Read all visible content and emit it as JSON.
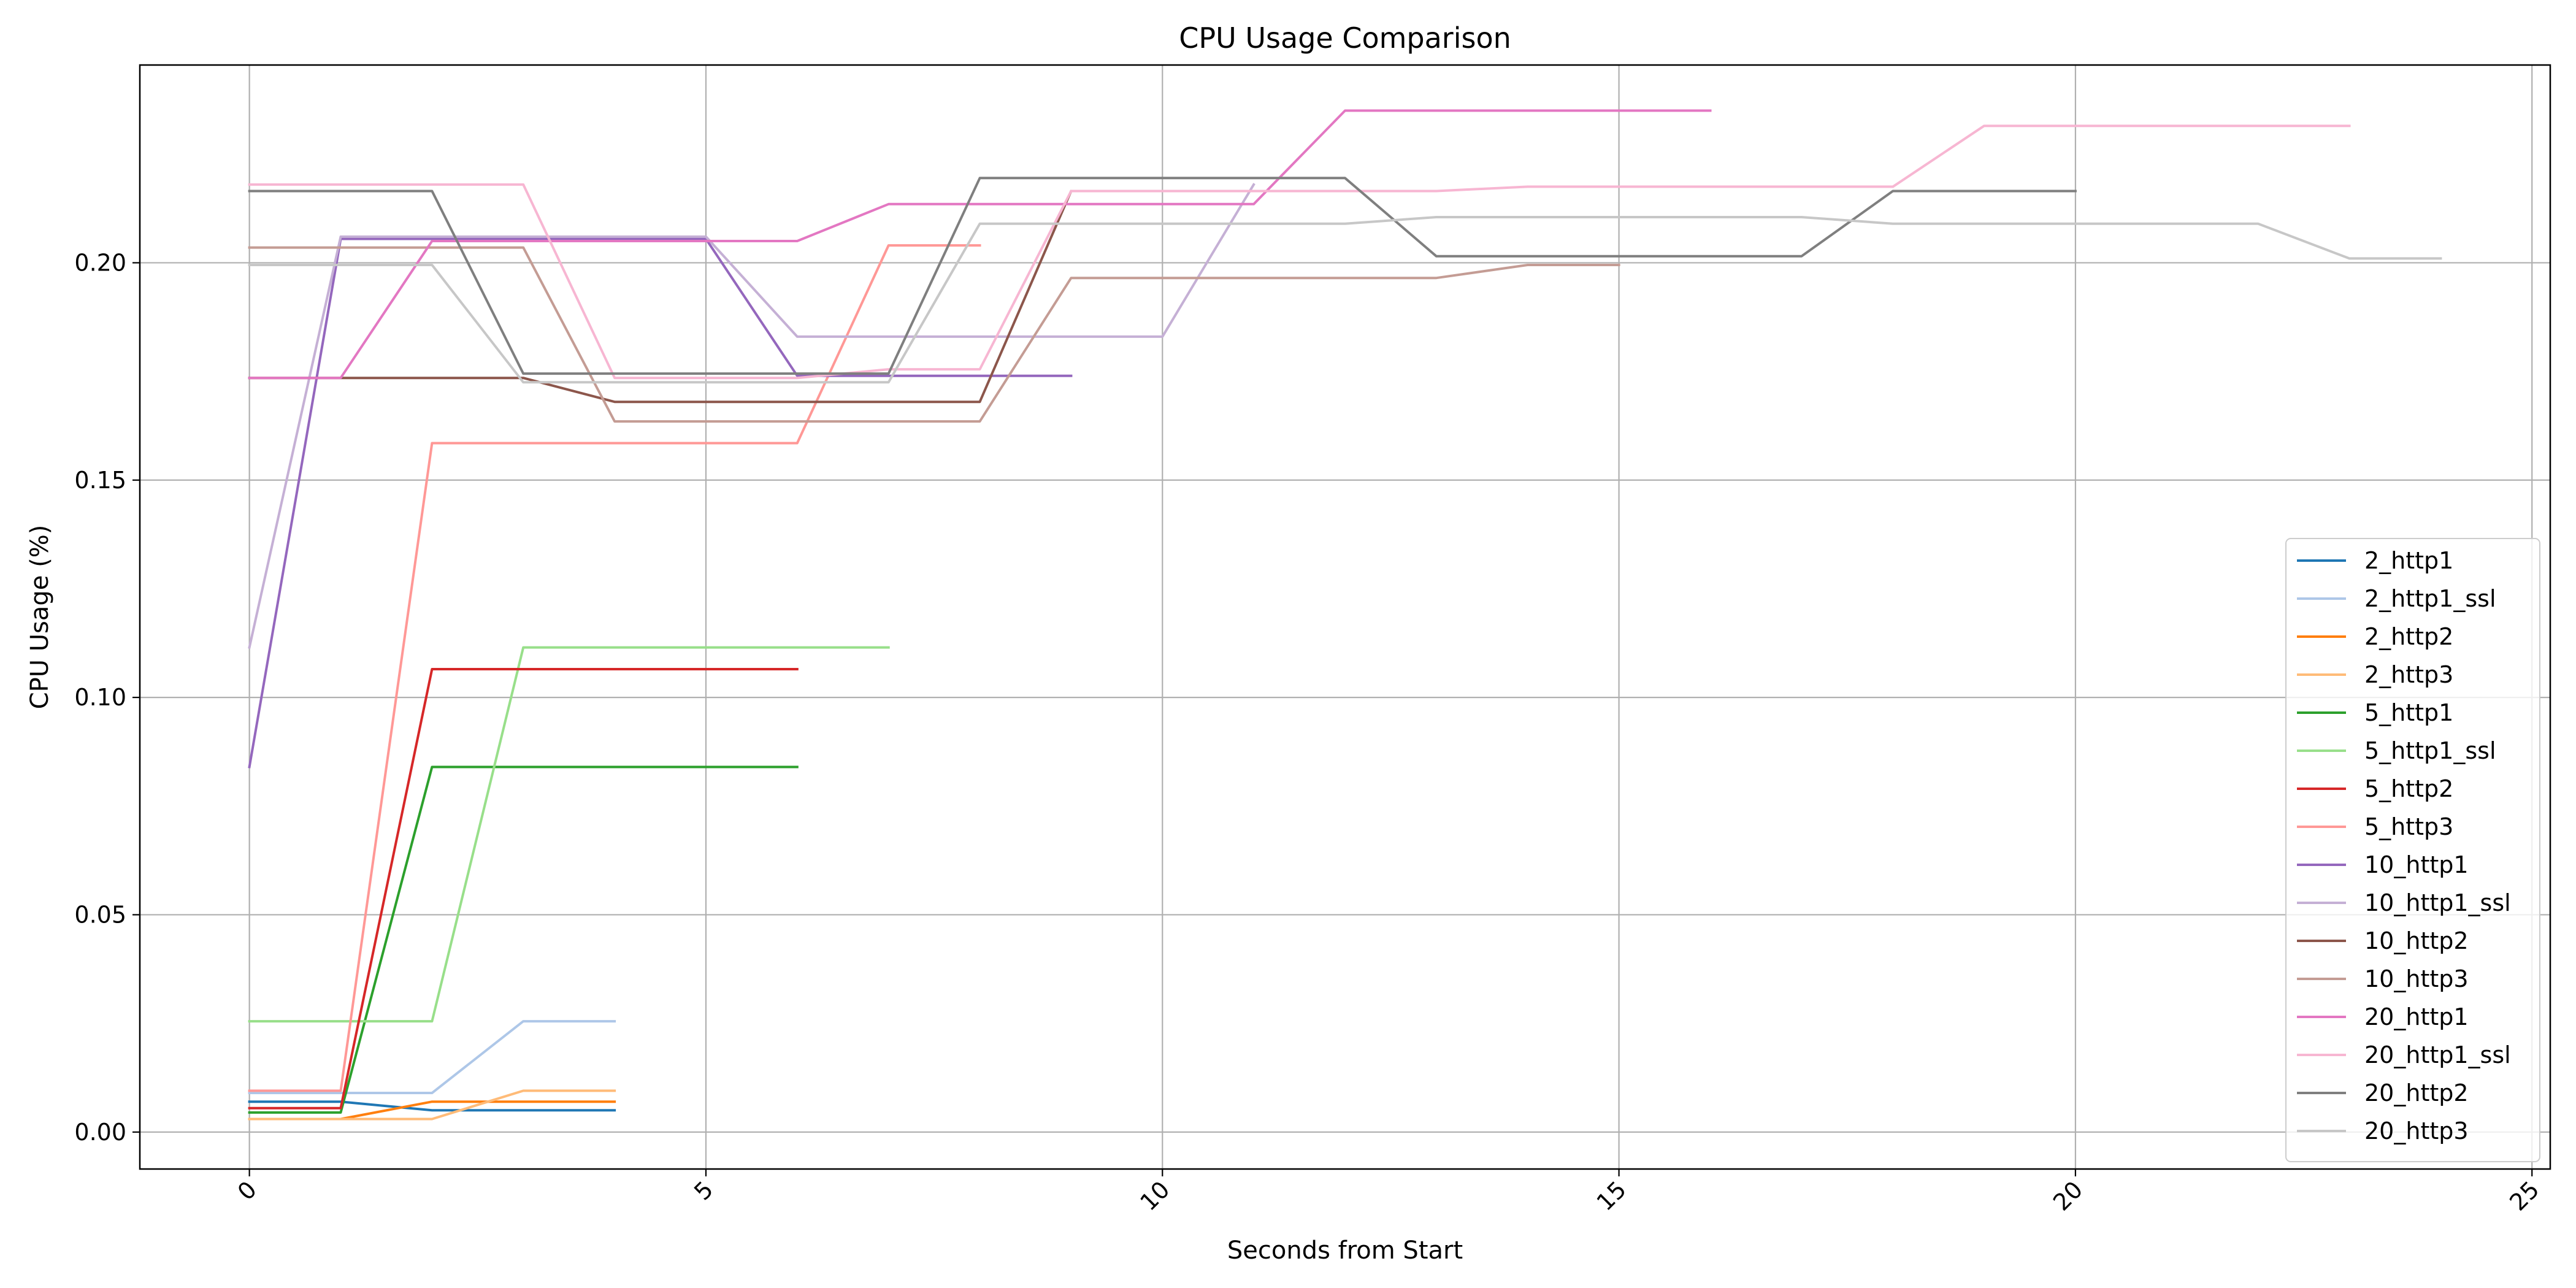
{
  "chart_data": {
    "type": "line",
    "title": "CPU Usage Comparison",
    "xlabel": "Seconds from Start",
    "ylabel": "CPU Usage (%)",
    "xlim": [
      -1.2,
      25.2
    ],
    "ylim": [
      -0.0085,
      0.2455
    ],
    "xticks": [
      0,
      5,
      10,
      15,
      20,
      25
    ],
    "xtick_labels": [
      "0",
      "5",
      "10",
      "15",
      "20",
      "25"
    ],
    "yticks": [
      0.0,
      0.05,
      0.1,
      0.15,
      0.2
    ],
    "ytick_labels": [
      "0.00",
      "0.05",
      "0.10",
      "0.15",
      "0.20"
    ],
    "grid": true,
    "legend_position": "lower-right",
    "series": [
      {
        "name": "2_http1",
        "color": "#1f77b4",
        "x": [
          0,
          1,
          2,
          3,
          4
        ],
        "y": [
          0.007,
          0.007,
          0.005,
          0.005,
          0.005
        ]
      },
      {
        "name": "2_http1_ssl",
        "color": "#aec7e8",
        "x": [
          0,
          1,
          2,
          3,
          4
        ],
        "y": [
          0.009,
          0.009,
          0.009,
          0.0255,
          0.0255
        ]
      },
      {
        "name": "2_http2",
        "color": "#ff7f0e",
        "x": [
          0,
          1,
          2,
          3,
          4
        ],
        "y": [
          0.003,
          0.003,
          0.007,
          0.007,
          0.007
        ]
      },
      {
        "name": "2_http3",
        "color": "#ffbb78",
        "x": [
          0,
          1,
          2,
          3,
          4
        ],
        "y": [
          0.003,
          0.003,
          0.003,
          0.0095,
          0.0095
        ]
      },
      {
        "name": "5_http1",
        "color": "#2ca02c",
        "x": [
          0,
          1,
          2,
          3,
          4,
          5,
          6
        ],
        "y": [
          0.0045,
          0.0045,
          0.084,
          0.084,
          0.084,
          0.084,
          0.084
        ]
      },
      {
        "name": "5_http1_ssl",
        "color": "#98df8a",
        "x": [
          0,
          1,
          2,
          3,
          4,
          5,
          6,
          7
        ],
        "y": [
          0.0255,
          0.0255,
          0.0255,
          0.1115,
          0.1115,
          0.1115,
          0.1115,
          0.1115
        ]
      },
      {
        "name": "5_http2",
        "color": "#d62728",
        "x": [
          0,
          1,
          2,
          3,
          4,
          5,
          6
        ],
        "y": [
          0.0055,
          0.0055,
          0.1065,
          0.1065,
          0.1065,
          0.1065,
          0.1065
        ]
      },
      {
        "name": "5_http3",
        "color": "#ff9896",
        "x": [
          0,
          1,
          2,
          3,
          4,
          5,
          6,
          7,
          8
        ],
        "y": [
          0.0095,
          0.0095,
          0.1585,
          0.1585,
          0.1585,
          0.1585,
          0.1585,
          0.204,
          0.204
        ]
      },
      {
        "name": "10_http1",
        "color": "#9467bd",
        "x": [
          0,
          1,
          2,
          3,
          4,
          5,
          6,
          7,
          8,
          9
        ],
        "y": [
          0.084,
          0.2055,
          0.2055,
          0.2055,
          0.2055,
          0.2055,
          0.174,
          0.174,
          0.174,
          0.174
        ]
      },
      {
        "name": "10_http1_ssl",
        "color": "#c5b0d5",
        "x": [
          0,
          1,
          2,
          3,
          4,
          5,
          6,
          7,
          8,
          9,
          10,
          11
        ],
        "y": [
          0.1115,
          0.206,
          0.206,
          0.206,
          0.206,
          0.206,
          0.183,
          0.183,
          0.183,
          0.183,
          0.183,
          0.218
        ]
      },
      {
        "name": "10_http2",
        "color": "#8c564b",
        "x": [
          0,
          1,
          2,
          3,
          4,
          5,
          6,
          7,
          8,
          9,
          10
        ],
        "y": [
          0.1735,
          0.1735,
          0.1735,
          0.1735,
          0.168,
          0.168,
          0.168,
          0.168,
          0.168,
          0.2165,
          0.2165
        ]
      },
      {
        "name": "10_http3",
        "color": "#c49c94",
        "x": [
          0,
          1,
          2,
          3,
          4,
          5,
          6,
          7,
          8,
          9,
          10,
          11,
          12,
          13,
          14,
          15
        ],
        "y": [
          0.2035,
          0.2035,
          0.2035,
          0.2035,
          0.1635,
          0.1635,
          0.1635,
          0.1635,
          0.1635,
          0.1965,
          0.1965,
          0.1965,
          0.1965,
          0.1965,
          0.1995,
          0.1995
        ]
      },
      {
        "name": "20_http1",
        "color": "#e377c2",
        "x": [
          0,
          1,
          2,
          3,
          4,
          5,
          6,
          7,
          8,
          9,
          10,
          11,
          12,
          13,
          14,
          15,
          16
        ],
        "y": [
          0.1735,
          0.1735,
          0.205,
          0.205,
          0.205,
          0.205,
          0.205,
          0.2135,
          0.2135,
          0.2135,
          0.2135,
          0.2135,
          0.235,
          0.235,
          0.235,
          0.235,
          0.235
        ]
      },
      {
        "name": "20_http1_ssl",
        "color": "#f7b6d2",
        "x": [
          0,
          1,
          2,
          3,
          4,
          5,
          6,
          7,
          8,
          9,
          10,
          11,
          12,
          13,
          14,
          15,
          16,
          17,
          18,
          19,
          20,
          21,
          22,
          23
        ],
        "y": [
          0.218,
          0.218,
          0.218,
          0.218,
          0.1735,
          0.1735,
          0.1735,
          0.1755,
          0.1755,
          0.2165,
          0.2165,
          0.2165,
          0.2165,
          0.2165,
          0.2175,
          0.2175,
          0.2175,
          0.2175,
          0.2175,
          0.2315,
          0.2315,
          0.2315,
          0.2315,
          0.2315
        ]
      },
      {
        "name": "20_http2",
        "color": "#7f7f7f",
        "x": [
          0,
          1,
          2,
          3,
          4,
          5,
          6,
          7,
          8,
          9,
          10,
          11,
          12,
          13,
          14,
          15,
          16,
          17,
          18,
          19,
          20
        ],
        "y": [
          0.2165,
          0.2165,
          0.2165,
          0.1745,
          0.1745,
          0.1745,
          0.1745,
          0.1745,
          0.2195,
          0.2195,
          0.2195,
          0.2195,
          0.2195,
          0.2015,
          0.2015,
          0.2015,
          0.2015,
          0.2015,
          0.2165,
          0.2165,
          0.2165
        ]
      },
      {
        "name": "20_http3",
        "color": "#c7c7c7",
        "x": [
          0,
          1,
          2,
          3,
          4,
          5,
          6,
          7,
          8,
          9,
          10,
          11,
          12,
          13,
          14,
          15,
          16,
          17,
          18,
          19,
          20,
          21,
          22,
          23,
          24
        ],
        "y": [
          0.1995,
          0.1995,
          0.1995,
          0.1725,
          0.1725,
          0.1725,
          0.1725,
          0.1725,
          0.209,
          0.209,
          0.209,
          0.209,
          0.209,
          0.2105,
          0.2105,
          0.2105,
          0.2105,
          0.2105,
          0.209,
          0.209,
          0.209,
          0.209,
          0.209,
          0.201,
          0.201
        ]
      }
    ]
  }
}
